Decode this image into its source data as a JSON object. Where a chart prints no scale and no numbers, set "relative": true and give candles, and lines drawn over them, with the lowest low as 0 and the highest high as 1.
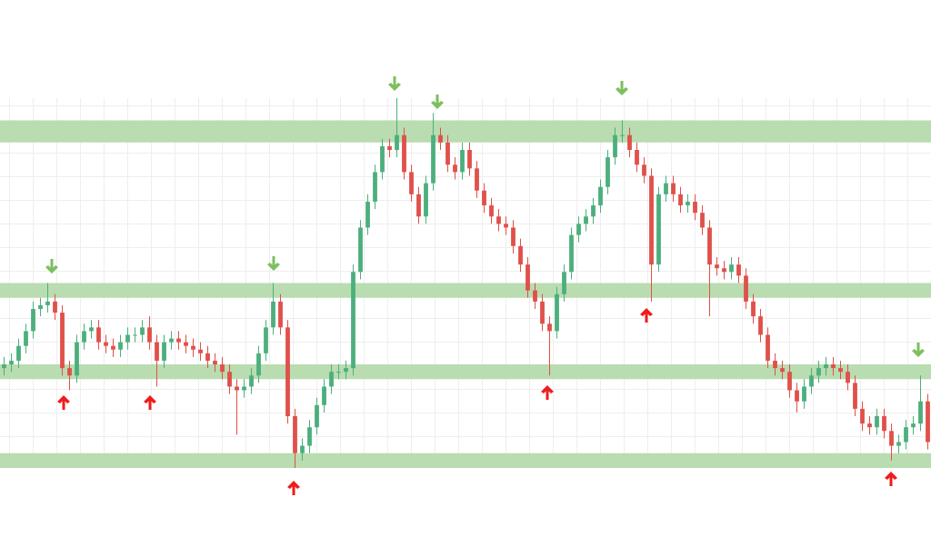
{
  "chart_data": {
    "type": "candlestick",
    "relative": true,
    "grid": true,
    "legend": false,
    "tick_labels": false,
    "categories": [
      null,
      null,
      null,
      null,
      null,
      null,
      null,
      null,
      null,
      null,
      null,
      null,
      null,
      null,
      null,
      null,
      null,
      null,
      null,
      null,
      null,
      null,
      null,
      null,
      null,
      null,
      null,
      null,
      null,
      null,
      null,
      null,
      null,
      null,
      null,
      null,
      null,
      null,
      null,
      null,
      null,
      null,
      null,
      null,
      null,
      null,
      null,
      null,
      null,
      null,
      null,
      null,
      null,
      null,
      null,
      null,
      null,
      null,
      null,
      null,
      null,
      null,
      null,
      null,
      null,
      null,
      null,
      null,
      null,
      null,
      null,
      null,
      null,
      null,
      null,
      null,
      null,
      null,
      null,
      null,
      null,
      null,
      null,
      null,
      null,
      null,
      null,
      null,
      null,
      null,
      null,
      null,
      null,
      null,
      null,
      null,
      null,
      null,
      null,
      null,
      null,
      null,
      null,
      null,
      null,
      null,
      null,
      null,
      null,
      null,
      null,
      null,
      null,
      null,
      null,
      null,
      null,
      null,
      null,
      null,
      null,
      null,
      null,
      null,
      null,
      null,
      null,
      null
    ],
    "ohlc": [
      [
        0.27,
        0.3,
        0.25,
        0.28
      ],
      [
        0.28,
        0.31,
        0.26,
        0.29
      ],
      [
        0.29,
        0.35,
        0.27,
        0.33
      ],
      [
        0.33,
        0.39,
        0.31,
        0.37
      ],
      [
        0.37,
        0.45,
        0.35,
        0.43
      ],
      [
        0.43,
        0.46,
        0.41,
        0.44
      ],
      [
        0.44,
        0.5,
        0.42,
        0.45
      ],
      [
        0.45,
        0.47,
        0.4,
        0.42
      ],
      [
        0.42,
        0.44,
        0.25,
        0.27
      ],
      [
        0.27,
        0.29,
        0.21,
        0.25
      ],
      [
        0.25,
        0.36,
        0.23,
        0.34
      ],
      [
        0.34,
        0.39,
        0.32,
        0.37
      ],
      [
        0.37,
        0.4,
        0.35,
        0.38
      ],
      [
        0.38,
        0.4,
        0.32,
        0.34
      ],
      [
        0.34,
        0.36,
        0.31,
        0.33
      ],
      [
        0.33,
        0.35,
        0.3,
        0.32
      ],
      [
        0.32,
        0.36,
        0.3,
        0.34
      ],
      [
        0.34,
        0.38,
        0.32,
        0.36
      ],
      [
        0.36,
        0.38,
        0.34,
        0.36
      ],
      [
        0.36,
        0.4,
        0.34,
        0.38
      ],
      [
        0.38,
        0.41,
        0.32,
        0.34
      ],
      [
        0.34,
        0.36,
        0.22,
        0.29
      ],
      [
        0.29,
        0.36,
        0.27,
        0.34
      ],
      [
        0.34,
        0.37,
        0.32,
        0.35
      ],
      [
        0.35,
        0.37,
        0.32,
        0.34
      ],
      [
        0.34,
        0.36,
        0.31,
        0.33
      ],
      [
        0.33,
        0.35,
        0.3,
        0.32
      ],
      [
        0.32,
        0.34,
        0.29,
        0.31
      ],
      [
        0.31,
        0.33,
        0.27,
        0.29
      ],
      [
        0.29,
        0.31,
        0.26,
        0.28
      ],
      [
        0.28,
        0.3,
        0.24,
        0.26
      ],
      [
        0.26,
        0.28,
        0.2,
        0.22
      ],
      [
        0.22,
        0.24,
        0.09,
        0.21
      ],
      [
        0.21,
        0.24,
        0.19,
        0.22
      ],
      [
        0.22,
        0.27,
        0.2,
        0.25
      ],
      [
        0.25,
        0.33,
        0.23,
        0.31
      ],
      [
        0.31,
        0.4,
        0.29,
        0.38
      ],
      [
        0.38,
        0.5,
        0.36,
        0.45
      ],
      [
        0.45,
        0.47,
        0.36,
        0.38
      ],
      [
        0.38,
        0.4,
        0.12,
        0.14
      ],
      [
        0.14,
        0.16,
        0.0,
        0.04
      ],
      [
        0.04,
        0.08,
        0.02,
        0.06
      ],
      [
        0.06,
        0.13,
        0.04,
        0.11
      ],
      [
        0.11,
        0.19,
        0.09,
        0.17
      ],
      [
        0.17,
        0.24,
        0.15,
        0.22
      ],
      [
        0.22,
        0.28,
        0.2,
        0.26
      ],
      [
        0.26,
        0.28,
        0.24,
        0.26
      ],
      [
        0.26,
        0.29,
        0.24,
        0.27
      ],
      [
        0.27,
        0.55,
        0.25,
        0.53
      ],
      [
        0.53,
        0.67,
        0.51,
        0.65
      ],
      [
        0.65,
        0.74,
        0.63,
        0.72
      ],
      [
        0.72,
        0.82,
        0.7,
        0.8
      ],
      [
        0.8,
        0.89,
        0.78,
        0.87
      ],
      [
        0.87,
        0.89,
        0.84,
        0.86
      ],
      [
        0.86,
        1.0,
        0.84,
        0.9
      ],
      [
        0.9,
        0.92,
        0.78,
        0.8
      ],
      [
        0.8,
        0.82,
        0.72,
        0.74
      ],
      [
        0.74,
        0.76,
        0.66,
        0.68
      ],
      [
        0.68,
        0.79,
        0.66,
        0.77
      ],
      [
        0.77,
        0.96,
        0.75,
        0.9
      ],
      [
        0.9,
        0.92,
        0.86,
        0.88
      ],
      [
        0.88,
        0.9,
        0.8,
        0.82
      ],
      [
        0.82,
        0.84,
        0.78,
        0.8
      ],
      [
        0.8,
        0.88,
        0.78,
        0.86
      ],
      [
        0.86,
        0.88,
        0.79,
        0.81
      ],
      [
        0.81,
        0.83,
        0.73,
        0.75
      ],
      [
        0.75,
        0.77,
        0.69,
        0.71
      ],
      [
        0.71,
        0.73,
        0.66,
        0.68
      ],
      [
        0.68,
        0.7,
        0.64,
        0.66
      ],
      [
        0.66,
        0.68,
        0.63,
        0.65
      ],
      [
        0.65,
        0.67,
        0.58,
        0.6
      ],
      [
        0.6,
        0.62,
        0.53,
        0.55
      ],
      [
        0.55,
        0.57,
        0.46,
        0.48
      ],
      [
        0.48,
        0.5,
        0.43,
        0.45
      ],
      [
        0.45,
        0.47,
        0.37,
        0.39
      ],
      [
        0.39,
        0.41,
        0.25,
        0.37
      ],
      [
        0.37,
        0.49,
        0.35,
        0.47
      ],
      [
        0.47,
        0.55,
        0.45,
        0.53
      ],
      [
        0.53,
        0.65,
        0.51,
        0.63
      ],
      [
        0.63,
        0.68,
        0.61,
        0.66
      ],
      [
        0.66,
        0.7,
        0.64,
        0.68
      ],
      [
        0.68,
        0.73,
        0.66,
        0.71
      ],
      [
        0.71,
        0.78,
        0.69,
        0.76
      ],
      [
        0.76,
        0.86,
        0.74,
        0.84
      ],
      [
        0.84,
        0.92,
        0.82,
        0.9
      ],
      [
        0.9,
        0.94,
        0.88,
        0.9
      ],
      [
        0.9,
        0.92,
        0.84,
        0.86
      ],
      [
        0.86,
        0.88,
        0.8,
        0.82
      ],
      [
        0.82,
        0.84,
        0.77,
        0.79
      ],
      [
        0.79,
        0.81,
        0.45,
        0.55
      ],
      [
        0.55,
        0.76,
        0.53,
        0.74
      ],
      [
        0.74,
        0.79,
        0.72,
        0.77
      ],
      [
        0.77,
        0.79,
        0.72,
        0.74
      ],
      [
        0.74,
        0.76,
        0.69,
        0.71
      ],
      [
        0.71,
        0.74,
        0.69,
        0.72
      ],
      [
        0.72,
        0.74,
        0.67,
        0.69
      ],
      [
        0.69,
        0.71,
        0.63,
        0.65
      ],
      [
        0.65,
        0.67,
        0.41,
        0.55
      ],
      [
        0.55,
        0.57,
        0.52,
        0.54
      ],
      [
        0.54,
        0.56,
        0.51,
        0.53
      ],
      [
        0.53,
        0.57,
        0.51,
        0.55
      ],
      [
        0.55,
        0.57,
        0.5,
        0.52
      ],
      [
        0.52,
        0.54,
        0.43,
        0.45
      ],
      [
        0.45,
        0.47,
        0.39,
        0.41
      ],
      [
        0.41,
        0.43,
        0.34,
        0.36
      ],
      [
        0.36,
        0.38,
        0.27,
        0.29
      ],
      [
        0.29,
        0.31,
        0.25,
        0.27
      ],
      [
        0.27,
        0.29,
        0.24,
        0.26
      ],
      [
        0.26,
        0.28,
        0.19,
        0.21
      ],
      [
        0.21,
        0.23,
        0.15,
        0.18
      ],
      [
        0.18,
        0.24,
        0.16,
        0.22
      ],
      [
        0.22,
        0.27,
        0.2,
        0.25
      ],
      [
        0.25,
        0.29,
        0.23,
        0.27
      ],
      [
        0.27,
        0.3,
        0.25,
        0.28
      ],
      [
        0.28,
        0.3,
        0.25,
        0.27
      ],
      [
        0.27,
        0.29,
        0.24,
        0.26
      ],
      [
        0.26,
        0.28,
        0.21,
        0.23
      ],
      [
        0.23,
        0.25,
        0.14,
        0.16
      ],
      [
        0.16,
        0.18,
        0.1,
        0.12
      ],
      [
        0.12,
        0.14,
        0.09,
        0.11
      ],
      [
        0.11,
        0.16,
        0.09,
        0.14
      ],
      [
        0.14,
        0.16,
        0.08,
        0.1
      ],
      [
        0.1,
        0.12,
        0.02,
        0.06
      ],
      [
        0.06,
        0.09,
        0.04,
        0.07
      ],
      [
        0.07,
        0.13,
        0.05,
        0.11
      ],
      [
        0.11,
        0.14,
        0.09,
        0.12
      ],
      [
        0.12,
        0.25,
        0.1,
        0.18
      ],
      [
        0.18,
        0.2,
        0.05,
        0.07
      ]
    ],
    "bands": [
      {
        "axis": "y",
        "from": 0.88,
        "to": 0.94,
        "color": "#b9dcb0"
      },
      {
        "axis": "y",
        "from": 0.46,
        "to": 0.5,
        "color": "#b9dcb0"
      },
      {
        "axis": "y",
        "from": 0.24,
        "to": 0.28,
        "color": "#b9dcb0"
      },
      {
        "axis": "y",
        "from": 0.0,
        "to": 0.04,
        "color": "#b9dcb0"
      }
    ]
  }
}
